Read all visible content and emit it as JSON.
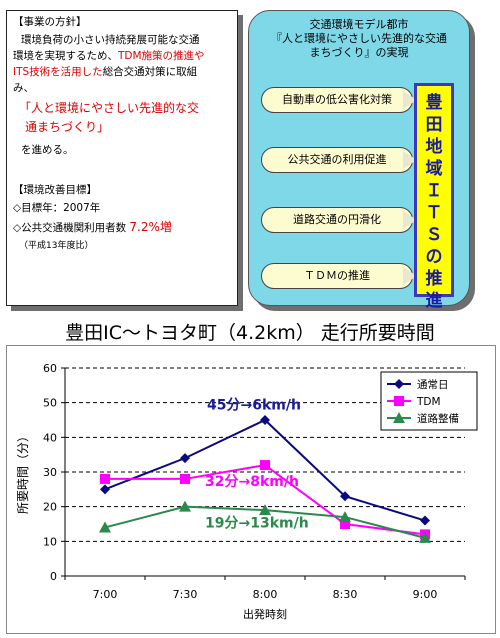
{
  "policy": {
    "heading": "【事業の方針】",
    "line1": "環境負荷の小さい持続発展可能な交通",
    "line2_a": "環境を実現するため、",
    "line2_b": "TDM施策の推進や",
    "line3_a": "ITS技術を活用した",
    "line3_b": "総合交通対策に取組",
    "line4": "み、",
    "quote1": "「人と環境にやさしい先進的な交",
    "quote2": "通まちづくり」",
    "line5": "を進める。",
    "goal_heading": "【環境改善目標】",
    "goal_year": "◇目標年：2007年",
    "goal_users_label": "◇公共交通機関利用者数",
    "goal_users_value": "7.2%増",
    "goal_note": "（平成13年度比）"
  },
  "model": {
    "title1": "交通環境モデル都市",
    "title2": "『人と環境にやさしい先進的な交通",
    "title3": "まちづくり』の実現",
    "measures": [
      "自動車の低公害化対策",
      "公共交通の利用促進",
      "道路交通の円滑化",
      "ＴＤＭの推進"
    ],
    "its_label": "豊田地域ＩＴＳの推進"
  },
  "chart_title": "豊田IC～トヨタ町（4.2km）  走行所要時間",
  "chart_data": {
    "type": "line",
    "categories": [
      "7:00",
      "7:30",
      "8:00",
      "8:30",
      "9:00"
    ],
    "xlabel": "出発時刻",
    "ylabel": "所要時間（分）",
    "ylim": [
      0,
      60
    ],
    "yticks": [
      0,
      10,
      20,
      30,
      40,
      50,
      60
    ],
    "grid": "horizontal dashed",
    "legend_position": "top-right",
    "series": [
      {
        "name": "通常日",
        "values": [
          25,
          34,
          45,
          23,
          16
        ],
        "color": "#0a0a80",
        "marker": "diamond"
      },
      {
        "name": "TDM",
        "values": [
          28,
          28,
          32,
          15,
          12
        ],
        "color": "#ff00ff",
        "marker": "square"
      },
      {
        "name": "道路整備",
        "values": [
          14,
          20,
          19,
          17,
          11
        ],
        "color": "#2a8a4a",
        "marker": "triangle"
      }
    ],
    "annotations": [
      {
        "text": "45分→6km/h",
        "color": "#1a1a9a"
      },
      {
        "text": "32分→8km/h",
        "color": "#ff00ff"
      },
      {
        "text": "19分→13km/h",
        "color": "#2a8a4a"
      }
    ]
  }
}
